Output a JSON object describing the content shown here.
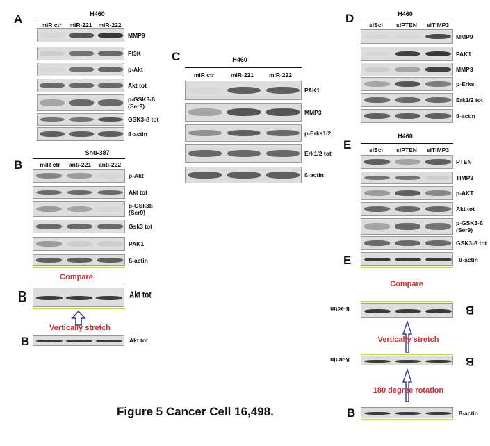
{
  "panels": {
    "A": {
      "letter": "A",
      "cell": "H460",
      "lanes": [
        "miR ctr",
        "miR-221",
        "miR-222"
      ],
      "rows": [
        {
          "label": "MMP9",
          "levels": [
            0.05,
            0.7,
            0.85
          ]
        },
        {
          "label": "PI3K",
          "levels": [
            0.1,
            0.55,
            0.6
          ]
        },
        {
          "label": "p-Akt",
          "levels": [
            0.05,
            0.55,
            0.6
          ]
        },
        {
          "label": "Akt tot",
          "levels": [
            0.6,
            0.6,
            0.6
          ]
        },
        {
          "label": "p-GSK3-ß\n(Ser9)",
          "levels": [
            0.3,
            0.6,
            0.6
          ]
        },
        {
          "label": "GSK3-ß tot",
          "levels": [
            0.55,
            0.55,
            0.7
          ]
        },
        {
          "label": "ß-actin",
          "levels": [
            0.65,
            0.65,
            0.65
          ]
        }
      ]
    },
    "B": {
      "letter": "B",
      "cell": "Snu-387",
      "lanes": [
        "miR ctr",
        "anti-221",
        "anti-222"
      ],
      "rows": [
        {
          "label": "p-Akt",
          "levels": [
            0.45,
            0.35,
            0.05
          ]
        },
        {
          "label": "Akt tot",
          "levels": [
            0.6,
            0.6,
            0.6
          ]
        },
        {
          "label": "p-GSk3b\n(Ser9)",
          "levels": [
            0.35,
            0.3,
            0.05
          ]
        },
        {
          "label": "Gsk3 tot",
          "levels": [
            0.6,
            0.6,
            0.6
          ]
        },
        {
          "label": "PAK1",
          "levels": [
            0.35,
            0.1,
            0.1
          ]
        },
        {
          "label": "ß-actin",
          "levels": [
            0.65,
            0.65,
            0.65
          ]
        }
      ]
    },
    "C": {
      "letter": "C",
      "cell": "H460",
      "lanes": [
        "miR ctr",
        "miR-221",
        "miR-222"
      ],
      "rows": [
        {
          "label": "PAK1",
          "levels": [
            0.05,
            0.65,
            0.65
          ]
        },
        {
          "label": "MMP3",
          "levels": [
            0.3,
            0.7,
            0.7
          ]
        },
        {
          "label": "p-Erks1/2",
          "levels": [
            0.4,
            0.65,
            0.6
          ]
        },
        {
          "label": "Erk1/2 tot",
          "levels": [
            0.6,
            0.6,
            0.6
          ]
        },
        {
          "label": "ß-actin",
          "levels": [
            0.65,
            0.65,
            0.65
          ]
        }
      ]
    },
    "D": {
      "letter": "D",
      "cell": "H460",
      "lanes": [
        "siScl",
        "siPTEN",
        "siTIMP3"
      ],
      "rows": [
        {
          "label": "MMP9",
          "levels": [
            0.05,
            0.05,
            0.75
          ]
        },
        {
          "label": "PAK1",
          "levels": [
            0.05,
            0.8,
            0.85
          ]
        },
        {
          "label": "MMP3",
          "levels": [
            0.1,
            0.3,
            0.8
          ]
        },
        {
          "label": "p-Erks",
          "levels": [
            0.3,
            0.7,
            0.5
          ]
        },
        {
          "label": "Erk1/2  tot",
          "levels": [
            0.6,
            0.6,
            0.6
          ]
        },
        {
          "label": "ß-actin",
          "levels": [
            0.65,
            0.65,
            0.65
          ]
        }
      ]
    },
    "E": {
      "letter": "E",
      "cell": "H460",
      "lanes": [
        "siScl",
        "siPTEN",
        "siTIMP3"
      ],
      "rows": [
        {
          "label": "PTEN",
          "levels": [
            0.65,
            0.3,
            0.65
          ]
        },
        {
          "label": "TIMP3",
          "levels": [
            0.55,
            0.55,
            0.1
          ]
        },
        {
          "label": "p-AKT",
          "levels": [
            0.35,
            0.65,
            0.45
          ]
        },
        {
          "label": "Akt tot",
          "levels": [
            0.6,
            0.6,
            0.6
          ]
        },
        {
          "label": "p-GSK3-ß\n(Ser9)",
          "levels": [
            0.3,
            0.6,
            0.55
          ]
        },
        {
          "label": "GSK3-ß tot",
          "levels": [
            0.6,
            0.6,
            0.6
          ]
        }
      ]
    }
  },
  "left_compare": {
    "compare": "Compare",
    "top_letter": "B",
    "top_label": "Akt tot",
    "stretch": "Vertically stretch",
    "bottom_letter": "B",
    "bottom_label": "Akt tot"
  },
  "right_compare": {
    "e_letter": "E",
    "e_label": "ß-actin",
    "compare": "Compare",
    "flip_label_1": "ß-actin",
    "flip_letter_1": "B",
    "stretch": "Vertically stretch",
    "flip_label_2": "ß-actin",
    "flip_letter_2": "B",
    "rotation": "180 degree rotation",
    "bottom_letter": "B",
    "bottom_label": "ß-actin"
  },
  "caption": "Figure 5 Cancer Cell 16,498.",
  "colors": {
    "accent_red": "#d42a2a",
    "highlight_green": "#c4dc3a",
    "arrow_blue": "#2a3c9a"
  }
}
